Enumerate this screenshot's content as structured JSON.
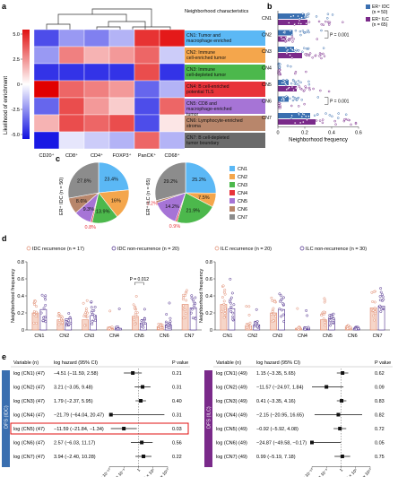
{
  "panel_labels": {
    "a": "a",
    "b": "b",
    "c": "c",
    "d": "d",
    "e": "e"
  },
  "panel_a": {
    "colorbar_title": "Likelihood of enrichment",
    "colorbar_ticks": [
      "5.0",
      "2.5",
      "0",
      "-2.5",
      "-5.0"
    ],
    "header": "Neighborhood characteristics",
    "columns": [
      "CD20⁺",
      "CD8⁺",
      "CD4⁺",
      "FOXP3⁺",
      "PanCK⁺",
      "CD68⁺"
    ],
    "rows": [
      {
        "label": "CN1: Tumor and macrophage enriched",
        "color": "#5bb8f5"
      },
      {
        "label": "CN2: Immune cell-enriched tumor",
        "color": "#f4a64c"
      },
      {
        "label": "CN3: Immune cell-depleted tumor",
        "color": "#4cb84c"
      },
      {
        "label": "CN4: B cell-enriched potential TLS",
        "color": "#e8333a"
      },
      {
        "label": "CN5: CD8 and macrophage-enriched tumor",
        "color": "#a674d6"
      },
      {
        "label": "CN6: Lymphocyte-enriched stroma",
        "color": "#b8866b"
      },
      {
        "label": "CN7: B cell-depleted tumor boundary",
        "color": "#6b6b6b"
      }
    ],
    "values": [
      [
        -3.5,
        -2.0,
        -2.5,
        -1.5,
        4.0,
        4.5
      ],
      [
        -2.0,
        2.5,
        1.5,
        2.0,
        3.0,
        -1.0
      ],
      [
        -4.0,
        -4.0,
        -4.0,
        -4.0,
        3.5,
        -4.0
      ],
      [
        5.0,
        3.0,
        2.5,
        2.0,
        -3.0,
        -1.5
      ],
      [
        -3.0,
        3.5,
        2.0,
        1.0,
        -3.5,
        3.0
      ],
      [
        1.5,
        3.5,
        3.0,
        3.5,
        -3.5,
        0.5
      ],
      [
        -4.5,
        -0.5,
        -1.0,
        -1.5,
        3.0,
        -1.5
      ]
    ]
  },
  "panel_b": {
    "xlabel": "Neighborhood frequency",
    "xticks": [
      "0",
      "0.2",
      "0.4",
      "0.6"
    ],
    "legend": [
      {
        "label": "ER⁺ IDC (n = 50)",
        "color": "#3a6fb0"
      },
      {
        "label": "ER⁺ ILC (n = 65)",
        "color": "#7a2a8a"
      }
    ],
    "rows": [
      "CN1",
      "CN2",
      "CN3",
      "CN4",
      "CN5",
      "CN6",
      "CN7"
    ],
    "annotations": [
      {
        "text": "P = 0.001",
        "row": "CN2"
      },
      {
        "text": "P = 0.001",
        "row": "CN6"
      }
    ]
  },
  "panel_c": {
    "left_label": "ER⁺ IDC (n = 50)",
    "right_label": "ER⁺ ILC (n = 65)",
    "legend": [
      {
        "label": "CN1",
        "color": "#5bb8f5"
      },
      {
        "label": "CN2",
        "color": "#f4a64c"
      },
      {
        "label": "CN3",
        "color": "#4cb84c"
      },
      {
        "label": "CN4",
        "color": "#e8333a"
      },
      {
        "label": "CN5",
        "color": "#a674d6"
      },
      {
        "label": "CN6",
        "color": "#b8866b"
      },
      {
        "label": "CN7",
        "color": "#8c8c8c"
      }
    ],
    "left_pie": [
      {
        "label": "23.4%",
        "value": 23.4
      },
      {
        "label": "16%",
        "value": 16.0
      },
      {
        "label": "13.9%",
        "value": 13.9
      },
      {
        "label": "0.8%",
        "value": 0.8
      },
      {
        "label": "9.3%",
        "value": 9.3
      },
      {
        "label": "8.6%",
        "value": 8.6
      },
      {
        "label": "27.8%",
        "value": 27.8
      }
    ],
    "right_pie": [
      {
        "label": "25.2%",
        "value": 25.2
      },
      {
        "label": "7.5%",
        "value": 7.5
      },
      {
        "label": "21.9%",
        "value": 21.9
      },
      {
        "label": "0.9%",
        "value": 0.9
      },
      {
        "label": "14.2%",
        "value": 14.2
      },
      {
        "label": "1.2%",
        "value": 1.2
      },
      {
        "label": "29.2%",
        "value": 29.2
      }
    ]
  },
  "panel_d": {
    "ylabel": "Neighborhood frequency",
    "yticks": [
      "0",
      "0.2",
      "0.4",
      "0.6",
      "0.8"
    ],
    "categories": [
      "CN1",
      "CN2",
      "CN3",
      "CN4",
      "CN5",
      "CN6",
      "CN7"
    ],
    "left": {
      "legend": [
        {
          "label": "IDC recurrence (n = 17)",
          "color": "#e08a6e"
        },
        {
          "label": "IDC non-recurrence (n = 20)",
          "color": "#4a2a8a"
        }
      ],
      "recurrence": [
        0.2,
        0.12,
        0.12,
        0.02,
        0.16,
        0.04,
        0.3
      ],
      "nonrecurrence": [
        0.24,
        0.13,
        0.17,
        0.02,
        0.08,
        0.06,
        0.26
      ],
      "annotation": "P = 0.012"
    },
    "right": {
      "legend": [
        {
          "label": "ILC recurrence (n = 20)",
          "color": "#e08a6e"
        },
        {
          "label": "ILC non-recurrence (n = 30)",
          "color": "#4a2a8a"
        }
      ],
      "recurrence": [
        0.3,
        0.05,
        0.2,
        0.02,
        0.12,
        0.03,
        0.26
      ],
      "nonrecurrence": [
        0.25,
        0.06,
        0.24,
        0.02,
        0.13,
        0.02,
        0.28
      ]
    }
  },
  "panel_e": {
    "xticks": [
      "1 × 10⁻¹⁰",
      "1 × 10⁻⁵",
      "1",
      "1 × 10⁵",
      "1 × 10¹⁰"
    ],
    "left": {
      "side_label": "DFS (IDC)",
      "side_color": "#3a6fb0",
      "headers": [
        "Variable (n)",
        "log hazard (95% CI)",
        "P value"
      ],
      "rows": [
        {
          "var": "log (CN1) (47)",
          "ci": "−4.51 (−11.59, 2.58)",
          "p": "0.21",
          "est": -4.51,
          "lo": -11.59,
          "hi": 2.58
        },
        {
          "var": "log (CN2) (47)",
          "ci": "3.21 (−3.05, 9.48)",
          "p": "0.31",
          "est": 3.21,
          "lo": -3.05,
          "hi": 9.48
        },
        {
          "var": "log (CN3) (47)",
          "ci": "1.79 (−2.37, 5.95)",
          "p": "0.40",
          "est": 1.79,
          "lo": -2.37,
          "hi": 5.95
        },
        {
          "var": "log (CN4) (47)",
          "ci": "−21.79 (−64.04, 20.47)",
          "p": "0.31",
          "est": -21.79,
          "lo": -64.04,
          "hi": 20.47
        },
        {
          "var": "log (CN5) (47)",
          "ci": "−11.59 (−21.84, −1.34)",
          "p": "0.03",
          "est": -11.59,
          "lo": -21.84,
          "hi": -1.34
        },
        {
          "var": "log (CN6) (47)",
          "ci": "2.57 (−6.03, 11.17)",
          "p": "0.56",
          "est": 2.57,
          "lo": -6.03,
          "hi": 11.17
        },
        {
          "var": "log (CN7) (47)",
          "ci": "3.94 (−2.40, 10.28)",
          "p": "0.22",
          "est": 3.94,
          "lo": -2.4,
          "hi": 10.28
        }
      ]
    },
    "right": {
      "side_label": "DFS (ILC)",
      "side_color": "#7a2a8a",
      "headers": [
        "Variable (n)",
        "log hazard (95% CI)",
        "P value"
      ],
      "rows": [
        {
          "var": "log (CN1) (49)",
          "ci": "1.15 (−3.35, 5.65)",
          "p": "0.62",
          "est": 1.15,
          "lo": -3.35,
          "hi": 5.65
        },
        {
          "var": "log (CN2) (49)",
          "ci": "−11.57 (−24.97, 1.84)",
          "p": "0.09",
          "est": -11.57,
          "lo": -24.97,
          "hi": 1.84
        },
        {
          "var": "log (CN3) (49)",
          "ci": "0.41 (−3.35, 4.16)",
          "p": "0.83",
          "est": 0.41,
          "lo": -3.35,
          "hi": 4.16
        },
        {
          "var": "log (CN4) (49)",
          "ci": "−2.15 (−20.95, 16.65)",
          "p": "0.82",
          "est": -2.15,
          "lo": -20.95,
          "hi": 16.65
        },
        {
          "var": "log (CN5) (49)",
          "ci": "−0.92 (−5.92, 4.08)",
          "p": "0.72",
          "est": -0.92,
          "lo": -5.92,
          "hi": 4.08
        },
        {
          "var": "log (CN6) (49)",
          "ci": "−24.87 (−49.58, −0.17)",
          "p": "0.05",
          "est": -24.87,
          "lo": -49.58,
          "hi": -0.17
        },
        {
          "var": "log (CN7) (49)",
          "ci": "0.99 (−5.19, 7.18)",
          "p": "0.75",
          "est": 0.99,
          "lo": -5.19,
          "hi": 7.18
        }
      ]
    }
  }
}
